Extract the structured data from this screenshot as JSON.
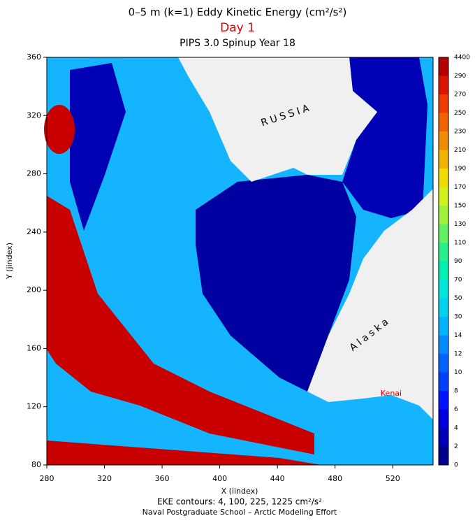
{
  "chart_data": {
    "type": "heatmap",
    "title": "0–5 m (k=1) Eddy Kinetic Energy (cm²/s²)",
    "subtitle": "Day 1",
    "caption": "PIPS 3.0 Spinup Year 18",
    "xlabel": "X (iindex)",
    "ylabel": "Y (jindex)",
    "xlim": [
      280,
      548
    ],
    "ylim": [
      80,
      360
    ],
    "xticks": [
      280,
      320,
      360,
      400,
      440,
      480,
      520
    ],
    "yticks": [
      80,
      120,
      160,
      200,
      240,
      280,
      320,
      360
    ],
    "colorbar": {
      "levels": [
        0,
        2,
        4,
        6,
        8,
        10,
        12,
        14,
        30,
        50,
        70,
        90,
        110,
        130,
        150,
        170,
        190,
        210,
        230,
        250,
        270,
        290,
        4400
      ],
      "colors": [
        "#00008c",
        "#0000b4",
        "#0000dc",
        "#0014ff",
        "#0040ff",
        "#0064ff",
        "#008cff",
        "#00b4ff",
        "#00d2f0",
        "#00e6dc",
        "#00f0b4",
        "#28f08c",
        "#64f064",
        "#a0f03c",
        "#d2f01e",
        "#f0dc00",
        "#f0b400",
        "#f08c00",
        "#f06400",
        "#f03c00",
        "#dc1400",
        "#b40000"
      ]
    },
    "annotations": [
      "RUSSIA",
      "Alaska",
      "Kenai"
    ],
    "footer": [
      "EKE contours: 4, 100, 225, 1225 cm²/s²",
      "Naval Postgraduate School – Arctic Modeling Effort"
    ]
  }
}
